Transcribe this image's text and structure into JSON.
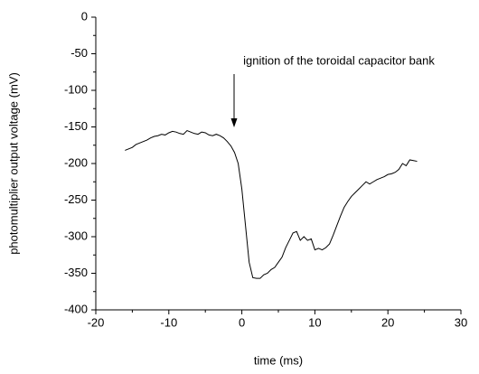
{
  "chart_data": {
    "type": "line",
    "xlabel": "time (ms)",
    "ylabel": "photomultiplier output voltage (mV)",
    "annotation": "ignition of the toroidal capacitor bank",
    "xlim": [
      -20,
      30
    ],
    "xticks": [
      -20,
      -10,
      0,
      10,
      20,
      30
    ],
    "ylim": [
      -400,
      0
    ],
    "yticks": [
      0,
      -50,
      -100,
      -150,
      -200,
      -250,
      -300,
      -350,
      -400
    ],
    "color": "#000000",
    "x": [
      -16,
      -15.5,
      -15,
      -14.5,
      -14,
      -13.5,
      -13,
      -12.5,
      -12,
      -11.5,
      -11,
      -10.5,
      -10,
      -9.5,
      -9,
      -8.5,
      -8,
      -7.5,
      -7,
      -6.5,
      -6,
      -5.5,
      -5,
      -4.5,
      -4,
      -3.5,
      -3,
      -2.5,
      -2,
      -1.5,
      -1,
      -0.5,
      0,
      0.5,
      1,
      1.5,
      2,
      2.5,
      3,
      3.5,
      4,
      4.5,
      5,
      5.5,
      6,
      6.5,
      7,
      7.5,
      8,
      8.5,
      9,
      9.5,
      10,
      10.5,
      11,
      11.5,
      12,
      12.5,
      13,
      13.5,
      14,
      14.5,
      15,
      15.5,
      16,
      16.5,
      17,
      17.5,
      18,
      18.5,
      19,
      19.5,
      20,
      20.5,
      21,
      21.5,
      22,
      22.5,
      23,
      23.5,
      24
    ],
    "values": [
      -182,
      -180,
      -178,
      -174,
      -172,
      -170,
      -168,
      -165,
      -163,
      -162,
      -160,
      -161,
      -158,
      -156,
      -157,
      -159,
      -160,
      -155,
      -157,
      -159,
      -160,
      -157,
      -158,
      -161,
      -162,
      -160,
      -162,
      -165,
      -170,
      -176,
      -185,
      -200,
      -235,
      -285,
      -335,
      -356,
      -357,
      -357,
      -352,
      -350,
      -345,
      -342,
      -335,
      -328,
      -315,
      -305,
      -295,
      -293,
      -305,
      -300,
      -305,
      -303,
      -318,
      -316,
      -318,
      -315,
      -310,
      -298,
      -285,
      -272,
      -260,
      -252,
      -245,
      -240,
      -235,
      -230,
      -225,
      -228,
      -225,
      -222,
      -220,
      -218,
      -215,
      -214,
      -212,
      -208,
      -200,
      -203,
      -195,
      -196,
      -197
    ]
  }
}
